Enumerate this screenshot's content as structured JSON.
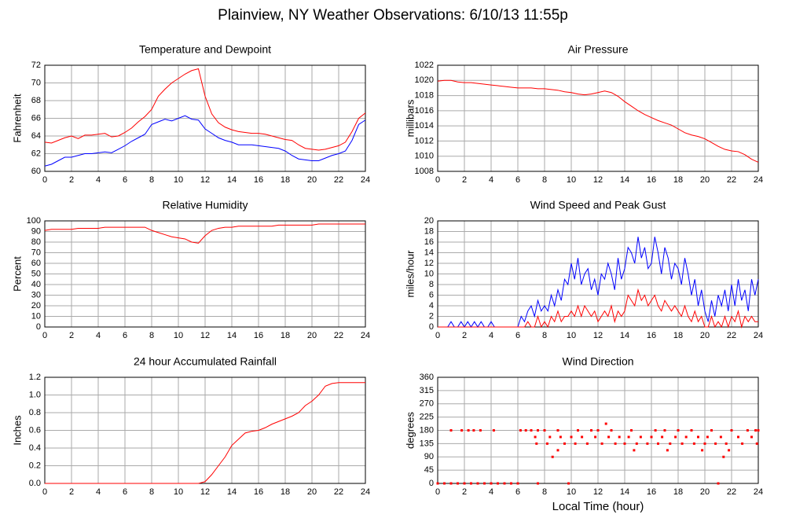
{
  "title": "Plainview, NY Weather Observations: 6/10/13 11:55p",
  "chart_data": [
    {
      "type": "line",
      "title": "Temperature and Dewpoint",
      "ylabel": "Fahrenheit",
      "grid": true,
      "xlim": [
        0,
        24
      ],
      "xticks": [
        0,
        2,
        4,
        6,
        8,
        10,
        12,
        14,
        16,
        18,
        20,
        22,
        24
      ],
      "ylim": [
        60,
        72
      ],
      "yticks": [
        60,
        62,
        64,
        66,
        68,
        70,
        72
      ],
      "x": [
        0,
        0.5,
        1,
        1.5,
        2,
        2.5,
        3,
        3.5,
        4,
        4.5,
        5,
        5.5,
        6,
        6.5,
        7,
        7.5,
        8,
        8.5,
        9,
        9.5,
        10,
        10.5,
        11,
        11.5,
        12,
        12.5,
        13,
        13.5,
        14,
        14.5,
        15,
        15.5,
        16,
        16.5,
        17,
        17.5,
        18,
        18.5,
        19,
        19.5,
        20,
        20.5,
        21,
        21.5,
        22,
        22.5,
        23,
        23.5,
        24
      ],
      "series": [
        {
          "color": "#ff0000",
          "values": [
            63.3,
            63.2,
            63.5,
            63.8,
            64.0,
            63.7,
            64.1,
            64.1,
            64.2,
            64.3,
            63.9,
            64.0,
            64.4,
            64.9,
            65.6,
            66.2,
            67.0,
            68.5,
            69.3,
            70.0,
            70.5,
            71.0,
            71.4,
            71.6,
            68.5,
            66.5,
            65.5,
            65.0,
            64.7,
            64.5,
            64.4,
            64.3,
            64.3,
            64.2,
            64.0,
            63.8,
            63.6,
            63.5,
            63.0,
            62.6,
            62.5,
            62.4,
            62.5,
            62.7,
            62.9,
            63.3,
            64.5,
            66.0,
            66.6
          ]
        },
        {
          "color": "#0000ff",
          "values": [
            60.6,
            60.8,
            61.2,
            61.6,
            61.6,
            61.8,
            62.0,
            62.0,
            62.1,
            62.2,
            62.1,
            62.5,
            62.9,
            63.4,
            63.8,
            64.2,
            65.3,
            65.6,
            65.9,
            65.7,
            66.0,
            66.3,
            65.9,
            65.8,
            64.8,
            64.3,
            63.8,
            63.5,
            63.3,
            63.0,
            63.0,
            63.0,
            62.9,
            62.8,
            62.7,
            62.6,
            62.3,
            61.8,
            61.4,
            61.3,
            61.2,
            61.2,
            61.5,
            61.8,
            62.0,
            62.3,
            63.5,
            65.3,
            65.8
          ]
        }
      ]
    },
    {
      "type": "line",
      "title": "Air Pressure",
      "ylabel": "millibars",
      "grid": true,
      "xlim": [
        0,
        24
      ],
      "xticks": [
        0,
        2,
        4,
        6,
        8,
        10,
        12,
        14,
        16,
        18,
        20,
        22,
        24
      ],
      "ylim": [
        1008,
        1022
      ],
      "yticks": [
        1008,
        1010,
        1012,
        1014,
        1016,
        1018,
        1020,
        1022
      ],
      "x": [
        0,
        0.5,
        1,
        1.5,
        2,
        2.5,
        3,
        3.5,
        4,
        4.5,
        5,
        5.5,
        6,
        6.5,
        7,
        7.5,
        8,
        8.5,
        9,
        9.5,
        10,
        10.5,
        11,
        11.5,
        12,
        12.5,
        13,
        13.5,
        14,
        14.5,
        15,
        15.5,
        16,
        16.5,
        17,
        17.5,
        18,
        18.5,
        19,
        19.5,
        20,
        20.5,
        21,
        21.5,
        22,
        22.5,
        23,
        23.5,
        24
      ],
      "series": [
        {
          "color": "#ff0000",
          "values": [
            1019.9,
            1020.0,
            1020.0,
            1019.8,
            1019.7,
            1019.7,
            1019.6,
            1019.5,
            1019.4,
            1019.3,
            1019.2,
            1019.1,
            1019.0,
            1019.0,
            1019.0,
            1018.9,
            1018.9,
            1018.8,
            1018.7,
            1018.5,
            1018.4,
            1018.2,
            1018.1,
            1018.2,
            1018.4,
            1018.6,
            1018.4,
            1017.9,
            1017.2,
            1016.6,
            1016.0,
            1015.5,
            1015.1,
            1014.7,
            1014.4,
            1014.1,
            1013.6,
            1013.1,
            1012.8,
            1012.6,
            1012.3,
            1011.8,
            1011.3,
            1010.9,
            1010.7,
            1010.6,
            1010.2,
            1009.6,
            1009.2
          ]
        }
      ]
    },
    {
      "type": "line",
      "title": "Relative Humidity",
      "ylabel": "Percent",
      "grid": true,
      "xlim": [
        0,
        24
      ],
      "xticks": [
        0,
        2,
        4,
        6,
        8,
        10,
        12,
        14,
        16,
        18,
        20,
        22,
        24
      ],
      "ylim": [
        0,
        100
      ],
      "yticks": [
        0,
        10,
        20,
        30,
        40,
        50,
        60,
        70,
        80,
        90,
        100
      ],
      "x": [
        0,
        0.5,
        1,
        1.5,
        2,
        2.5,
        3,
        3.5,
        4,
        4.5,
        5,
        5.5,
        6,
        6.5,
        7,
        7.5,
        8,
        8.5,
        9,
        9.5,
        10,
        10.5,
        11,
        11.5,
        12,
        12.5,
        13,
        13.5,
        14,
        14.5,
        15,
        15.5,
        16,
        16.5,
        17,
        17.5,
        18,
        18.5,
        19,
        19.5,
        20,
        20.5,
        21,
        21.5,
        22,
        22.5,
        23,
        23.5,
        24
      ],
      "series": [
        {
          "color": "#ff0000",
          "values": [
            91,
            92,
            92,
            92,
            92,
            93,
            93,
            93,
            93,
            94,
            94,
            94,
            94,
            94,
            94,
            94,
            91,
            89,
            87,
            85,
            84,
            83,
            80,
            79,
            86,
            91,
            93,
            94,
            94,
            95,
            95,
            95,
            95,
            95,
            95,
            96,
            96,
            96,
            96,
            96,
            96,
            97,
            97,
            97,
            97,
            97,
            97,
            97,
            97
          ]
        }
      ]
    },
    {
      "type": "line",
      "title": "Wind Speed and Peak Gust",
      "ylabel": "miles/hour",
      "grid": true,
      "xlim": [
        0,
        24
      ],
      "xticks": [
        0,
        2,
        4,
        6,
        8,
        10,
        12,
        14,
        16,
        18,
        20,
        22,
        24
      ],
      "ylim": [
        0,
        20
      ],
      "yticks": [
        0,
        2,
        4,
        6,
        8,
        10,
        12,
        14,
        16,
        18,
        20
      ],
      "x": [
        0,
        0.25,
        0.5,
        0.75,
        1,
        1.25,
        1.5,
        1.75,
        2,
        2.25,
        2.5,
        2.75,
        3,
        3.25,
        3.5,
        3.75,
        4,
        4.25,
        4.5,
        4.75,
        5,
        5.25,
        5.5,
        5.75,
        6,
        6.25,
        6.5,
        6.75,
        7,
        7.25,
        7.5,
        7.75,
        8,
        8.25,
        8.5,
        8.75,
        9,
        9.25,
        9.5,
        9.75,
        10,
        10.25,
        10.5,
        10.75,
        11,
        11.25,
        11.5,
        11.75,
        12,
        12.25,
        12.5,
        12.75,
        13,
        13.25,
        13.5,
        13.75,
        14,
        14.25,
        14.5,
        14.75,
        15,
        15.25,
        15.5,
        15.75,
        16,
        16.25,
        16.5,
        16.75,
        17,
        17.25,
        17.5,
        17.75,
        18,
        18.25,
        18.5,
        18.75,
        19,
        19.25,
        19.5,
        19.75,
        20,
        20.25,
        20.5,
        20.75,
        21,
        21.25,
        21.5,
        21.75,
        22,
        22.25,
        22.5,
        22.75,
        23,
        23.25,
        23.5,
        23.75,
        24
      ],
      "series": [
        {
          "color": "#0000ff",
          "values": [
            0,
            0,
            0,
            0,
            1,
            0,
            0,
            1,
            0,
            1,
            0,
            1,
            0,
            1,
            0,
            0,
            1,
            0,
            0,
            0,
            0,
            0,
            0,
            0,
            0,
            2,
            1,
            3,
            4,
            2,
            5,
            3,
            4,
            3,
            6,
            4,
            7,
            5,
            9,
            8,
            12,
            9,
            13,
            8,
            10,
            11,
            7,
            9,
            6,
            10,
            9,
            12,
            10,
            7,
            13,
            9,
            11,
            15,
            14,
            12,
            17,
            13,
            15,
            11,
            12,
            17,
            14,
            10,
            15,
            13,
            9,
            12,
            11,
            8,
            13,
            10,
            6,
            9,
            4,
            7,
            3,
            1,
            5,
            2,
            6,
            4,
            7,
            3,
            8,
            4,
            9,
            5,
            7,
            3,
            9,
            6,
            9
          ]
        },
        {
          "color": "#ff0000",
          "values": [
            0,
            0,
            0,
            0,
            0,
            0,
            0,
            0,
            0,
            0,
            0,
            0,
            0,
            0,
            0,
            0,
            0,
            0,
            0,
            0,
            0,
            0,
            0,
            0,
            0,
            0,
            0,
            1,
            0,
            0,
            2,
            0,
            1,
            0,
            2,
            1,
            3,
            1,
            2,
            2,
            3,
            2,
            4,
            2,
            4,
            3,
            2,
            3,
            1,
            2,
            3,
            2,
            4,
            1,
            3,
            2,
            3,
            6,
            5,
            4,
            7,
            5,
            6,
            4,
            5,
            6,
            4,
            3,
            5,
            4,
            3,
            4,
            3,
            2,
            4,
            2,
            1,
            3,
            1,
            2,
            0,
            0,
            2,
            0,
            1,
            0,
            2,
            0,
            2,
            1,
            3,
            0,
            2,
            1,
            2,
            1,
            1
          ]
        }
      ]
    },
    {
      "type": "line",
      "title": "24 hour Accumulated Rainfall",
      "ylabel": "Inches",
      "grid": true,
      "xlim": [
        0,
        24
      ],
      "xticks": [
        0,
        2,
        4,
        6,
        8,
        10,
        12,
        14,
        16,
        18,
        20,
        22,
        24
      ],
      "ylim": [
        0,
        1.2
      ],
      "yticks": [
        {
          "value": 0,
          "label": "0.0"
        },
        0.2,
        0.4,
        0.6,
        0.8,
        {
          "value": 1,
          "label": "1.0"
        },
        1.2
      ],
      "x": [
        0,
        0.5,
        1,
        1.5,
        2,
        2.5,
        3,
        3.5,
        4,
        4.5,
        5,
        5.5,
        6,
        6.5,
        7,
        7.5,
        8,
        8.5,
        9,
        9.5,
        10,
        10.5,
        11,
        11.5,
        12,
        12.5,
        13,
        13.5,
        14,
        14.5,
        15,
        15.5,
        16,
        16.5,
        17,
        17.5,
        18,
        18.5,
        19,
        19.5,
        20,
        20.5,
        21,
        21.5,
        22,
        22.5,
        23,
        23.5,
        24
      ],
      "series": [
        {
          "color": "#ff0000",
          "values": [
            0,
            0,
            0,
            0,
            0,
            0,
            0,
            0,
            0,
            0,
            0,
            0,
            0,
            0,
            0,
            0,
            0,
            0,
            0,
            0,
            0,
            0,
            0,
            0,
            0.02,
            0.1,
            0.2,
            0.3,
            0.43,
            0.5,
            0.57,
            0.59,
            0.6,
            0.63,
            0.67,
            0.7,
            0.73,
            0.76,
            0.8,
            0.88,
            0.93,
            1.0,
            1.1,
            1.13,
            1.14,
            1.14,
            1.14,
            1.14,
            1.14
          ]
        }
      ]
    },
    {
      "type": "scatter",
      "title": "Wind Direction",
      "ylabel": "degrees",
      "xlabel": "Local Time (hour)",
      "grid": true,
      "xlim": [
        0,
        24
      ],
      "xticks": [
        0,
        2,
        4,
        6,
        8,
        10,
        12,
        14,
        16,
        18,
        20,
        22,
        24
      ],
      "ylim": [
        0,
        360
      ],
      "yticks": [
        0,
        45,
        90,
        135,
        180,
        225,
        270,
        315,
        360
      ],
      "x": [
        0,
        0.5,
        1,
        1.5,
        2,
        2.5,
        3,
        3.5,
        4,
        4.5,
        5,
        5.5,
        6,
        7.5,
        9.8,
        21,
        1.0,
        1.8,
        2.3,
        2.7,
        3.2,
        4.2,
        6.2,
        6.6,
        7.0,
        7.5,
        8.0,
        9.0,
        10.5,
        11.5,
        12.0,
        13.0,
        14.5,
        16.3,
        17.0,
        18.0,
        19.0,
        20.5,
        22.0,
        23.2,
        23.8,
        24.0,
        7.3,
        8.4,
        9.2,
        10.0,
        10.8,
        11.8,
        12.8,
        13.6,
        14.3,
        15.2,
        16.0,
        16.8,
        17.8,
        18.6,
        19.5,
        20.2,
        21.2,
        22.5,
        23.5,
        7.4,
        8.2,
        9.5,
        10.3,
        11.2,
        12.3,
        13.3,
        14.0,
        14.9,
        15.7,
        16.5,
        17.4,
        18.3,
        19.2,
        20.0,
        20.8,
        21.6,
        22.8,
        23.9,
        9.0,
        14.7,
        17.2,
        19.8,
        21.8,
        8.6,
        21.4,
        12.6
      ],
      "series": [
        {
          "color": "#ff0000",
          "values": [
            0,
            0,
            0,
            0,
            0,
            0,
            0,
            0,
            0,
            0,
            0,
            0,
            0,
            0,
            0,
            0,
            180,
            180,
            180,
            180,
            180,
            180,
            180,
            180,
            180,
            180,
            180,
            180,
            180,
            180,
            180,
            180,
            180,
            180,
            180,
            180,
            180,
            180,
            180,
            180,
            180,
            180,
            157.5,
            157.5,
            157.5,
            157.5,
            157.5,
            157.5,
            157.5,
            157.5,
            157.5,
            157.5,
            157.5,
            157.5,
            157.5,
            157.5,
            157.5,
            157.5,
            157.5,
            157.5,
            157.5,
            135,
            135,
            135,
            135,
            135,
            135,
            135,
            135,
            135,
            135,
            135,
            135,
            135,
            135,
            135,
            135,
            135,
            135,
            135,
            112.5,
            112.5,
            112.5,
            112.5,
            112.5,
            90,
            90,
            202.5
          ]
        }
      ]
    }
  ]
}
